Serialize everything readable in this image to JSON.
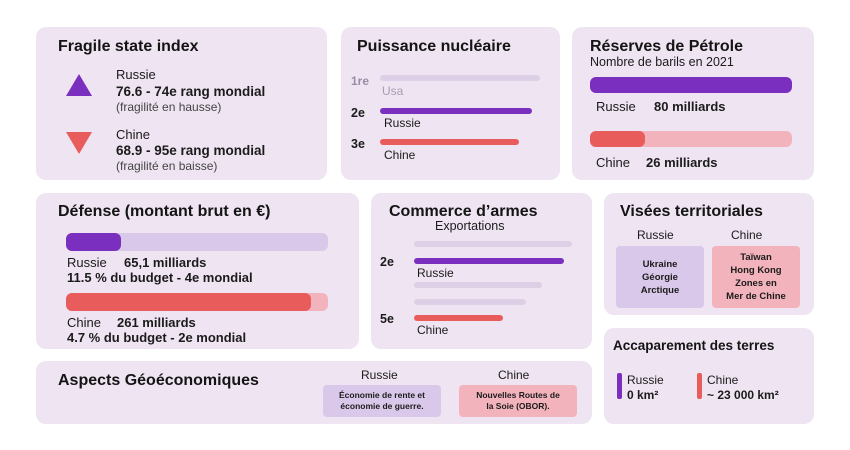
{
  "fragile": {
    "title": "Fragile state index",
    "russia": {
      "country": "Russie",
      "value": "76.6 - 74e rang mondial",
      "note": "(fragilité en hausse)"
    },
    "china": {
      "country": "Chine",
      "value": "68.9 - 95e rang mondial",
      "note": "(fragilité en baisse)"
    }
  },
  "nuclear": {
    "title": "Puissance nucléaire",
    "rows": [
      {
        "rank": "1re",
        "country": "Usa",
        "fill": 1.0
      },
      {
        "rank": "2e",
        "country": "Russie",
        "fill": 0.95
      },
      {
        "rank": "3e",
        "country": "Chine",
        "fill": 0.83
      }
    ]
  },
  "oil": {
    "title": "Réserves de Pétrole",
    "subtitle": "Nombre de barils en 2021",
    "russia": {
      "country": "Russie",
      "amount": "80 milliards",
      "value": 80
    },
    "china": {
      "country": "Chine",
      "amount": "26 milliards",
      "value": 26
    }
  },
  "defense": {
    "title": "Défense (montant brut en €)",
    "russia": {
      "country": "Russie",
      "amount": "65,1 milliards",
      "detail": "11.5 % du budget - 4e mondial",
      "value": 65.1
    },
    "china": {
      "country": "Chine",
      "amount": "261 milliards",
      "detail": "4.7 % du budget - 2e mondial",
      "value": 261
    }
  },
  "arms": {
    "title": "Commerce d’armes",
    "subtitle": "Exportations",
    "russia": {
      "rank": "2e",
      "country": "Russie"
    },
    "china": {
      "rank": "5e",
      "country": "Chine"
    }
  },
  "territorial": {
    "title": "Visées territoriales",
    "russia": {
      "header": "Russie",
      "items": [
        "Ukraine",
        "Géorgie",
        "Arctique"
      ]
    },
    "china": {
      "header": "Chine",
      "items": [
        "Taïwan",
        "Hong Kong",
        "Zones en",
        "Mer de Chine"
      ]
    }
  },
  "geo": {
    "title": "Aspects Géoéconomiques",
    "russia": {
      "header": "Russie",
      "text1": "Économie de rente et",
      "text2": "économie de guerre."
    },
    "china": {
      "header": "Chine",
      "text1": "Nouvelles Routes de",
      "text2": "la Soie (OBOR)."
    }
  },
  "land": {
    "title": "Accaparement des terres",
    "russia": {
      "country": "Russie",
      "amount": "0 km²"
    },
    "china": {
      "country": "Chine",
      "amount": "~ 23 000 km²"
    }
  },
  "colors": {
    "card": "#efe4f2",
    "purple": "#7b2fbf",
    "red": "#e85c5c",
    "track": "#d9c8e9",
    "pink_track": "#f2b3bc"
  }
}
